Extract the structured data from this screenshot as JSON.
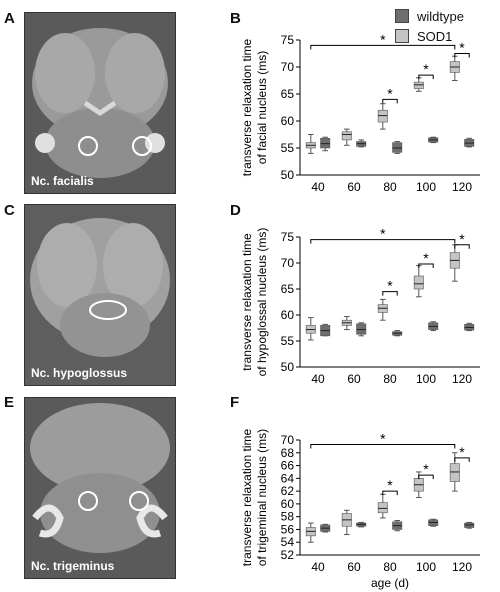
{
  "panels": {
    "A": {
      "letter": "A",
      "label": "Nc. facialis"
    },
    "B": {
      "letter": "B"
    },
    "C": {
      "letter": "C",
      "label": "Nc. hypoglossus"
    },
    "D": {
      "letter": "D"
    },
    "E": {
      "letter": "E",
      "label": "Nc.  trigeminus"
    },
    "F": {
      "letter": "F"
    }
  },
  "legend": {
    "wildtype": {
      "label": "wildtype",
      "color": "#6e6e6e"
    },
    "sod1": {
      "label": "SOD1",
      "color": "#c4c4c4"
    }
  },
  "chart_data": [
    {
      "type": "box",
      "panel": "B",
      "ylabel": "transverse relaxation time\nof facial nucleus (ms)",
      "xlabel": "",
      "categories": [
        "40",
        "60",
        "80",
        "100",
        "120"
      ],
      "ylim": [
        50,
        75
      ],
      "yticks": [
        50,
        55,
        60,
        65,
        70,
        75
      ],
      "series": [
        {
          "name": "SOD1",
          "boxes": [
            {
              "min": 54,
              "q1": 55,
              "median": 55.5,
              "q3": 56,
              "max": 57.5
            },
            {
              "min": 55.5,
              "q1": 56.5,
              "median": 57.5,
              "q3": 58,
              "max": 58.5
            },
            {
              "min": 58.5,
              "q1": 59.8,
              "median": 61,
              "q3": 62,
              "max": 63.2
            },
            {
              "min": 65.5,
              "q1": 66,
              "median": 66.7,
              "q3": 67.2,
              "max": 68
            },
            {
              "min": 67.5,
              "q1": 69,
              "median": 70,
              "q3": 71,
              "max": 72
            }
          ]
        },
        {
          "name": "wildtype",
          "boxes": [
            {
              "min": 54.5,
              "q1": 55,
              "median": 55.8,
              "q3": 56.8,
              "max": 57
            },
            {
              "min": 55.2,
              "q1": 55.3,
              "median": 55.8,
              "q3": 56.2,
              "max": 56.5
            },
            {
              "min": 54,
              "q1": 54.2,
              "median": 55,
              "q3": 56,
              "max": 56.2
            },
            {
              "min": 56,
              "q1": 56.1,
              "median": 56.5,
              "q3": 56.9,
              "max": 57
            },
            {
              "min": 55.2,
              "q1": 55.3,
              "median": 55.9,
              "q3": 56.6,
              "max": 56.8
            }
          ]
        }
      ],
      "significance": [
        {
          "from": 0,
          "to": 4,
          "y": 74,
          "label": "*"
        },
        {
          "from": 2,
          "to": 2.5,
          "y": 64,
          "label": "*"
        },
        {
          "from": 3,
          "to": 3.5,
          "y": 68.5,
          "label": "*"
        },
        {
          "from": 4,
          "to": 4.5,
          "y": 72.5,
          "label": "*"
        }
      ]
    },
    {
      "type": "box",
      "panel": "D",
      "ylabel": "transverse relaxation time\nof hypoglossal nucleus (ms)",
      "xlabel": "",
      "categories": [
        "40",
        "60",
        "80",
        "100",
        "120"
      ],
      "ylim": [
        50,
        75
      ],
      "yticks": [
        50,
        55,
        60,
        65,
        70,
        75
      ],
      "series": [
        {
          "name": "SOD1",
          "boxes": [
            {
              "min": 55.2,
              "q1": 56.5,
              "median": 57.2,
              "q3": 58,
              "max": 59.5
            },
            {
              "min": 57.2,
              "q1": 58,
              "median": 58.5,
              "q3": 59,
              "max": 59.7
            },
            {
              "min": 59,
              "q1": 60.5,
              "median": 61.3,
              "q3": 62,
              "max": 63
            },
            {
              "min": 63.5,
              "q1": 65,
              "median": 66,
              "q3": 67.5,
              "max": 69.5
            },
            {
              "min": 66.5,
              "q1": 69,
              "median": 70.5,
              "q3": 72,
              "max": 73.5
            }
          ]
        },
        {
          "name": "wildtype",
          "boxes": [
            {
              "min": 56,
              "q1": 56,
              "median": 57,
              "q3": 58,
              "max": 58.2
            },
            {
              "min": 56,
              "q1": 56.3,
              "median": 57.2,
              "q3": 58.3,
              "max": 58.5
            },
            {
              "min": 56,
              "q1": 56.1,
              "median": 56.5,
              "q3": 56.8,
              "max": 57
            },
            {
              "min": 57,
              "q1": 57.2,
              "median": 57.8,
              "q3": 58.5,
              "max": 58.7
            },
            {
              "min": 57,
              "q1": 57.1,
              "median": 57.6,
              "q3": 58.2,
              "max": 58.4
            }
          ]
        }
      ],
      "significance": [
        {
          "from": 0,
          "to": 4,
          "y": 74.5,
          "label": "*"
        },
        {
          "from": 2,
          "to": 2.5,
          "y": 64.5,
          "label": "*"
        },
        {
          "from": 3,
          "to": 3.5,
          "y": 69.8,
          "label": "*"
        },
        {
          "from": 4,
          "to": 4.5,
          "y": 73.5,
          "label": "*"
        }
      ]
    },
    {
      "type": "box",
      "panel": "F",
      "ylabel": "transverse relaxation time\nof trigeminal nucleus (ms)",
      "xlabel": "age (d)",
      "categories": [
        "40",
        "60",
        "80",
        "100",
        "120"
      ],
      "ylim": [
        52,
        70
      ],
      "yticks": [
        52,
        54,
        56,
        58,
        60,
        62,
        64,
        66,
        68,
        70
      ],
      "series": [
        {
          "name": "SOD1",
          "boxes": [
            {
              "min": 54,
              "q1": 55,
              "median": 55.7,
              "q3": 56.3,
              "max": 57
            },
            {
              "min": 55.2,
              "q1": 56.5,
              "median": 57.5,
              "q3": 58.5,
              "max": 59
            },
            {
              "min": 57.8,
              "q1": 58.6,
              "median": 59.3,
              "q3": 60.2,
              "max": 61.5
            },
            {
              "min": 61,
              "q1": 62,
              "median": 63,
              "q3": 64,
              "max": 65
            },
            {
              "min": 62,
              "q1": 63.5,
              "median": 65,
              "q3": 66.3,
              "max": 68
            }
          ]
        },
        {
          "name": "wildtype",
          "boxes": [
            {
              "min": 55.6,
              "q1": 55.7,
              "median": 56.2,
              "q3": 56.7,
              "max": 56.8
            },
            {
              "min": 56.4,
              "q1": 56.5,
              "median": 56.8,
              "q3": 57,
              "max": 57.1
            },
            {
              "min": 55.8,
              "q1": 56,
              "median": 56.6,
              "q3": 57.2,
              "max": 57.4
            },
            {
              "min": 56.5,
              "q1": 56.6,
              "median": 57.1,
              "q3": 57.5,
              "max": 57.6
            },
            {
              "min": 56.2,
              "q1": 56.3,
              "median": 56.7,
              "q3": 57,
              "max": 57.1
            }
          ]
        }
      ],
      "significance": [
        {
          "from": 0,
          "to": 4,
          "y": 69.3,
          "label": "*"
        },
        {
          "from": 2,
          "to": 2.5,
          "y": 62,
          "label": "*"
        },
        {
          "from": 3,
          "to": 3.5,
          "y": 64.5,
          "label": "*"
        },
        {
          "from": 4,
          "to": 4.5,
          "y": 67.2,
          "label": "*"
        }
      ]
    }
  ]
}
